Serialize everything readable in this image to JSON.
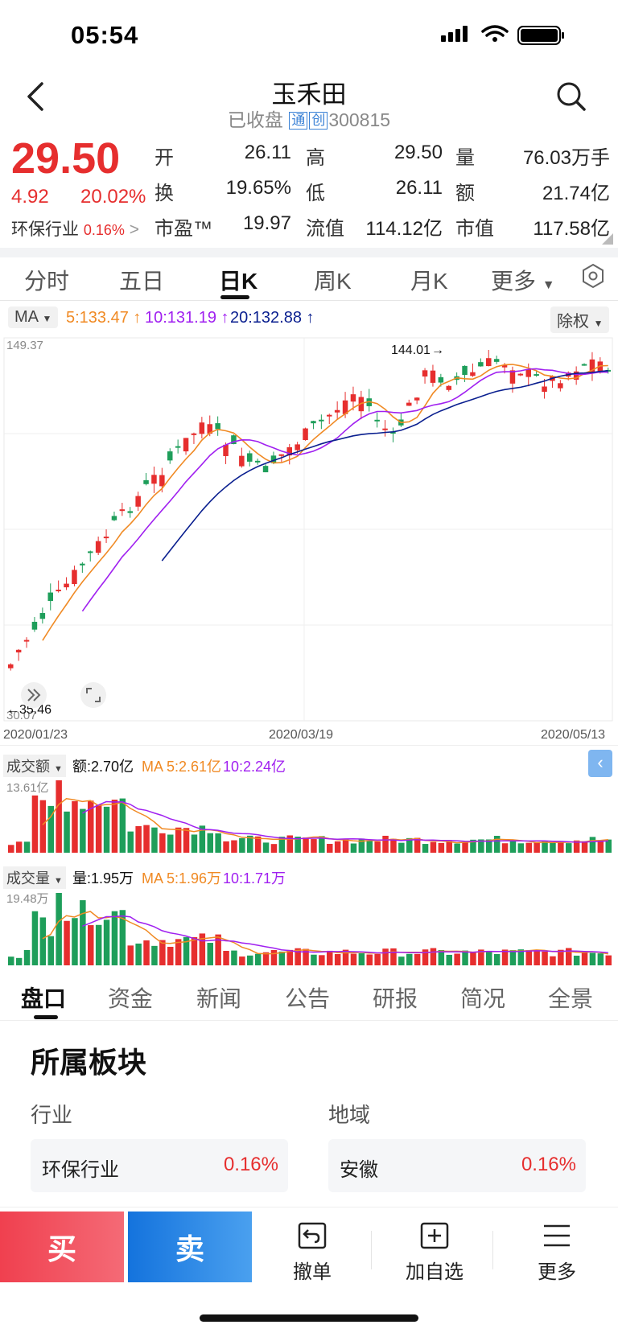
{
  "status_bar": {
    "time": "05:54"
  },
  "header": {
    "title": "玉禾田",
    "status": "已收盘",
    "tag_tong": "通",
    "tag_chuang": "创",
    "code": "300815"
  },
  "quote": {
    "price": "29.50",
    "change": "4.92",
    "change_pct": "20.02%",
    "sector_name": "环保行业",
    "sector_pct": "0.16%",
    "open_label": "开",
    "open": "26.11",
    "high_label": "高",
    "high": "29.50",
    "volume_label": "量",
    "volume": "76.03万手",
    "turnover_label": "换",
    "turnover": "19.65%",
    "low_label": "低",
    "low": "26.11",
    "amount_label": "额",
    "amount": "21.74亿",
    "pe_label": "市盈™",
    "pe": "19.97",
    "float_cap_label": "流值",
    "float_cap": "114.12亿",
    "mkt_cap_label": "市值",
    "mkt_cap": "117.58亿"
  },
  "chart_tabs": [
    "分时",
    "五日",
    "日K",
    "周K",
    "月K",
    "更多"
  ],
  "ma_bar": {
    "ma_label": "MA",
    "ma5": "5:133.47",
    "ma10": "10:131.19",
    "ma20": "20:132.88",
    "adjust": "除权"
  },
  "kline": {
    "max_label": "149.37",
    "min_label": "30.07",
    "peak_label": "144.01",
    "low_mark": "35.46",
    "date_start": "2020/01/23",
    "date_mid": "2020/03/19",
    "date_end": "2020/05/13"
  },
  "amount_panel": {
    "title": "成交额",
    "value": "额:2.70亿",
    "ma5": "MA 5:2.61亿",
    "ma10": "10:2.24亿",
    "max": "13.61亿"
  },
  "volume_panel": {
    "title": "成交量",
    "value": "量:1.95万",
    "ma5": "MA 5:1.96万",
    "ma10": "10:1.71万",
    "max": "19.48万"
  },
  "info_tabs": [
    "盘口",
    "资金",
    "新闻",
    "公告",
    "研报",
    "简况",
    "全景"
  ],
  "sectors": {
    "title": "所属板块",
    "industry_label": "行业",
    "region_label": "地域",
    "industry_name": "环保行业",
    "industry_pct": "0.16%",
    "region_name": "安徽",
    "region_pct": "0.16%"
  },
  "bottom_bar": {
    "buy": "买",
    "sell": "卖",
    "cancel": "撤单",
    "add_watch": "加自选",
    "more": "更多"
  },
  "colors": {
    "up": "#e62e2e",
    "down": "#1e9e5a",
    "ma5": "#f08a24",
    "ma10": "#a020f0",
    "ma20": "#0a1f8f",
    "buy": "#f24a5a",
    "sell": "#1b7fe0"
  }
}
